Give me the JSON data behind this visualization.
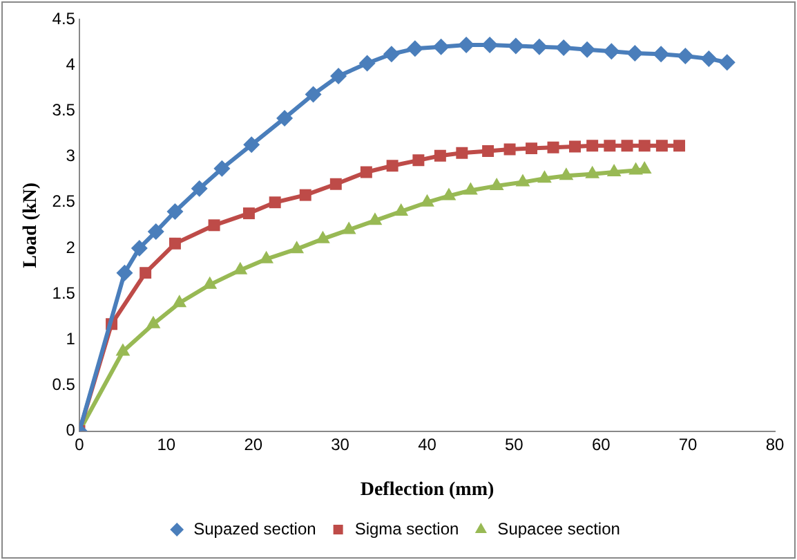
{
  "chart_data": {
    "type": "line",
    "xlabel": "Deflection (mm)",
    "ylabel": "Load (kN)",
    "xlim": [
      0,
      80
    ],
    "xticks": [
      0,
      10,
      20,
      30,
      40,
      50,
      60,
      70,
      80
    ],
    "ylim": [
      0,
      4.5
    ],
    "yticks": [
      0,
      0.5,
      1,
      1.5,
      2,
      2.5,
      3,
      3.5,
      4,
      4.5
    ],
    "grid": false,
    "legend": "bottom",
    "series": [
      {
        "name": "Supazed section",
        "color": "#4a7ebb",
        "marker": "diamond",
        "x": [
          0,
          5.2,
          6.9,
          8.8,
          11,
          13.8,
          16.4,
          19.8,
          23.6,
          26.9,
          29.8,
          33.1,
          35.9,
          38.6,
          41.6,
          44.5,
          47.2,
          50.2,
          52.9,
          55.7,
          58.4,
          61.2,
          63.9,
          66.9,
          69.7,
          72.4,
          74.5
        ],
        "values": [
          0,
          1.73,
          2.0,
          2.18,
          2.4,
          2.65,
          2.87,
          3.13,
          3.42,
          3.68,
          3.88,
          4.02,
          4.12,
          4.18,
          4.2,
          4.22,
          4.22,
          4.21,
          4.2,
          4.19,
          4.17,
          4.15,
          4.13,
          4.12,
          4.1,
          4.07,
          4.03
        ]
      },
      {
        "name": "Sigma section",
        "color": "#be4b48",
        "marker": "square",
        "x": [
          0,
          3.7,
          7.6,
          11,
          15.5,
          19.5,
          22.5,
          26,
          29.5,
          33,
          36,
          39,
          41.5,
          44,
          47,
          49.5,
          52,
          54.5,
          57,
          59,
          61,
          63,
          65,
          67,
          69
        ],
        "values": [
          0,
          1.17,
          1.73,
          2.05,
          2.25,
          2.38,
          2.5,
          2.58,
          2.7,
          2.83,
          2.9,
          2.96,
          3.01,
          3.04,
          3.06,
          3.08,
          3.09,
          3.1,
          3.11,
          3.12,
          3.12,
          3.12,
          3.12,
          3.12,
          3.12
        ]
      },
      {
        "name": "Supacee section",
        "color": "#98b954",
        "marker": "triangle",
        "x": [
          0,
          5,
          8.5,
          11.5,
          15,
          18.5,
          21.5,
          25,
          28,
          31,
          34,
          37,
          40,
          42.5,
          45,
          48,
          51,
          53.5,
          56,
          59,
          61.5,
          64,
          65
        ],
        "values": [
          0,
          0.87,
          1.17,
          1.4,
          1.6,
          1.76,
          1.88,
          1.99,
          2.1,
          2.2,
          2.3,
          2.4,
          2.5,
          2.57,
          2.63,
          2.68,
          2.72,
          2.76,
          2.79,
          2.81,
          2.83,
          2.85,
          2.86
        ]
      }
    ]
  }
}
